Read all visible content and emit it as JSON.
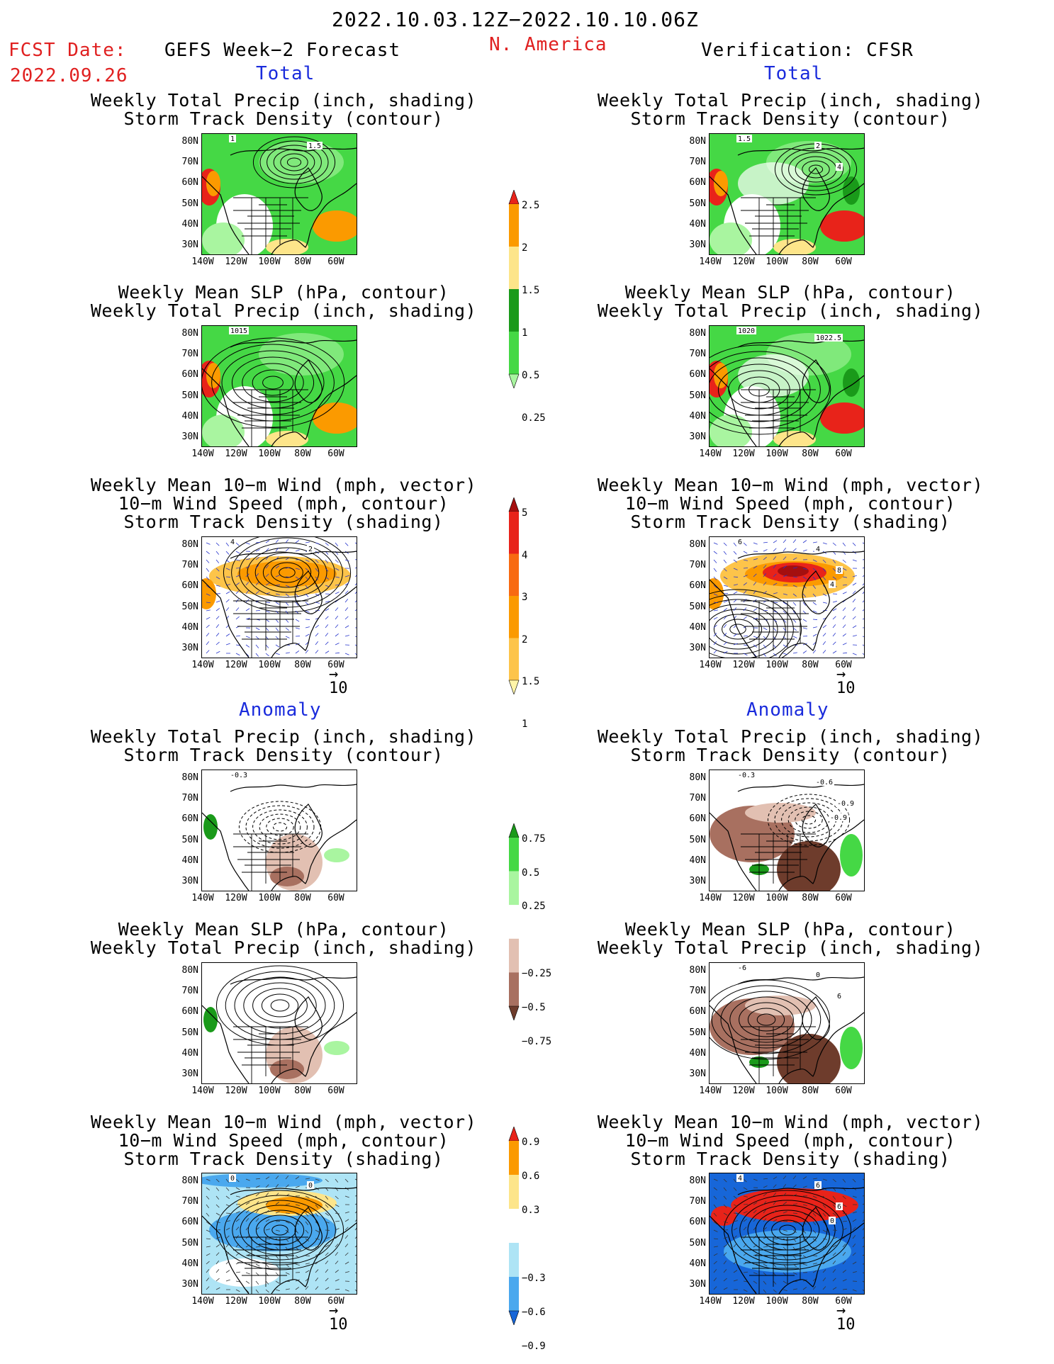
{
  "header": {
    "date_range": "2022.10.03.12Z−2022.10.10.06Z",
    "region": "N. America",
    "fcst_label": "FCST Date:",
    "fcst_date": "2022.09.26",
    "model": "GEFS Week−2 Forecast",
    "verification": "Verification: CFSR"
  },
  "sections": {
    "total": "Total",
    "anomaly": "Anomaly"
  },
  "titles": {
    "precip_track": [
      "Weekly Total Precip (inch, shading)",
      "Storm Track Density (contour)"
    ],
    "slp_precip": [
      "Weekly Mean SLP (hPa, contour)",
      "Weekly Total Precip (inch, shading)"
    ],
    "wind_track": [
      "Weekly Mean 10−m Wind (mph, vector)",
      "10−m Wind Speed (mph, contour)",
      "Storm Track Density (shading)"
    ]
  },
  "axes": {
    "lat_labels": [
      "80N",
      "70N",
      "60N",
      "50N",
      "40N",
      "30N"
    ],
    "lon_labels": [
      "140W",
      "120W",
      "100W",
      "80W",
      "60W"
    ],
    "vector_ref": "10"
  },
  "contour_labels": {
    "fc_total_precip": [
      "1",
      "1.5"
    ],
    "ver_total_precip": [
      "1.5",
      "2",
      "4"
    ],
    "fc_total_slp": [
      "1015"
    ],
    "ver_total_slp": [
      "1020",
      "1022.5"
    ],
    "fc_total_wind": [
      "4",
      "2"
    ],
    "ver_total_wind": [
      "6",
      "4",
      "8",
      "4"
    ],
    "fc_anom_precip": [
      "-0.3"
    ],
    "ver_anom_precip": [
      "-0.3",
      "-0.6",
      "-0.9",
      "-0.9"
    ],
    "ver_anom_slp": [
      "-6",
      "0",
      "6"
    ],
    "fc_anom_wind": [
      "0",
      "0"
    ],
    "ver_anom_wind": [
      "4",
      "6",
      "6",
      "0"
    ]
  },
  "colorbars": {
    "total_precip": {
      "labels": [
        "2.5",
        "2",
        "1.5",
        "1",
        "0.5",
        "0.25"
      ],
      "colors": [
        "#e8231a",
        "#fb9a00",
        "#fde58a",
        "#1a9a1a",
        "#45d845",
        "#a9f5a0"
      ]
    },
    "total_track": {
      "labels": [
        "5",
        "4",
        "3",
        "2",
        "1.5",
        "1"
      ],
      "colors": [
        "#a50f0f",
        "#e8231a",
        "#f86a11",
        "#fb9a00",
        "#fdc44a",
        "#fff5a8"
      ]
    },
    "anom_precip": {
      "labels": [
        "0.75",
        "0.5",
        "0.25",
        "−0.25",
        "−0.5",
        "−0.75"
      ],
      "colors": [
        "#1a9a1a",
        "#45d845",
        "#a9f5a0",
        "#ffffff",
        "#e2c0b2",
        "#a87060",
        "#6e3c2c"
      ]
    },
    "anom_track": {
      "labels": [
        "0.9",
        "0.6",
        "0.3",
        "−0.3",
        "−0.6",
        "−0.9"
      ],
      "colors": [
        "#e8231a",
        "#fb9a00",
        "#fde58a",
        "#ffffff",
        "#aee4f5",
        "#4aa8ee",
        "#1766d8"
      ]
    }
  }
}
